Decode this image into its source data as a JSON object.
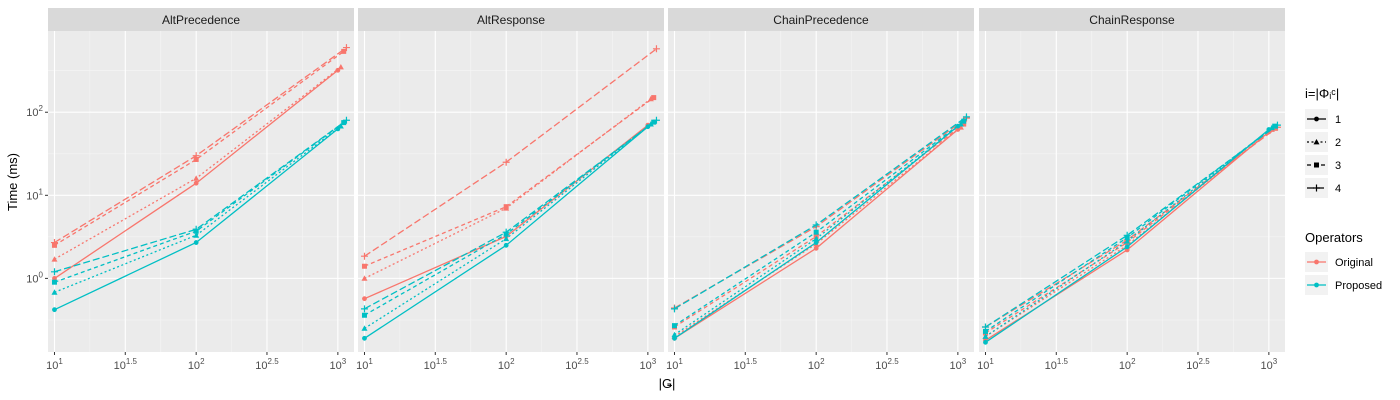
{
  "chart_data": {
    "type": "line",
    "xlabel": "|Ǥ|",
    "ylabel": "Time (ms)",
    "x_scale": "log10",
    "y_scale": "log10",
    "xlim": [
      9,
      1300
    ],
    "ylim": [
      0.13,
      950
    ],
    "x_ticks": [
      {
        "value": 10,
        "base": "10",
        "exp": "1"
      },
      {
        "value": 31.6,
        "base": "10",
        "exp": "1.5"
      },
      {
        "value": 100,
        "base": "10",
        "exp": "2"
      },
      {
        "value": 316,
        "base": "10",
        "exp": "2.5"
      },
      {
        "value": 1000,
        "base": "10",
        "exp": "3"
      }
    ],
    "y_ticks": [
      {
        "value": 1,
        "base": "10",
        "exp": "0"
      },
      {
        "value": 10,
        "base": "10",
        "exp": "1"
      },
      {
        "value": 100,
        "base": "10",
        "exp": "2"
      }
    ],
    "grid": true,
    "colors": {
      "Original": "#F8766D",
      "Proposed": "#00BFC4"
    },
    "legends": {
      "shape": {
        "title": "i=|Φᵢᶜ|",
        "items": [
          {
            "label": "1",
            "dash": "solid",
            "shape": "circle"
          },
          {
            "label": "2",
            "dash": "dashed-short",
            "shape": "triangle"
          },
          {
            "label": "3",
            "dash": "dashed",
            "shape": "square"
          },
          {
            "label": "4",
            "dash": "longdash",
            "shape": "plus"
          }
        ]
      },
      "color": {
        "title": "Operators",
        "items": [
          {
            "label": "Original",
            "color": "#F8766D"
          },
          {
            "label": "Proposed",
            "color": "#00BFC4"
          }
        ]
      }
    },
    "facets": [
      {
        "title": "AltPrecedence",
        "series": [
          {
            "operator": "Original",
            "i": "1",
            "x": [
              10,
              100,
              1000
            ],
            "y": [
              1.0,
              14,
              320
            ]
          },
          {
            "operator": "Original",
            "i": "2",
            "x": [
              10,
              100,
              1050
            ],
            "y": [
              1.7,
              16,
              350
            ]
          },
          {
            "operator": "Original",
            "i": "3",
            "x": [
              10,
              100,
              1100
            ],
            "y": [
              2.5,
              27,
              540
            ]
          },
          {
            "operator": "Original",
            "i": "4",
            "x": [
              10,
              100,
              1150
            ],
            "y": [
              2.7,
              30,
              600
            ]
          },
          {
            "operator": "Proposed",
            "i": "1",
            "x": [
              10,
              100,
              1000
            ],
            "y": [
              0.42,
              2.7,
              63
            ]
          },
          {
            "operator": "Proposed",
            "i": "2",
            "x": [
              10,
              100,
              1050
            ],
            "y": [
              0.68,
              3.3,
              68
            ]
          },
          {
            "operator": "Proposed",
            "i": "3",
            "x": [
              10,
              100,
              1100
            ],
            "y": [
              0.9,
              3.7,
              75
            ]
          },
          {
            "operator": "Proposed",
            "i": "4",
            "x": [
              10,
              100,
              1150
            ],
            "y": [
              1.2,
              3.9,
              80
            ]
          }
        ]
      },
      {
        "title": "AltResponse",
        "series": [
          {
            "operator": "Original",
            "i": "1",
            "x": [
              10,
              100,
              1000
            ],
            "y": [
              0.57,
              3.2,
              70
            ]
          },
          {
            "operator": "Original",
            "i": "2",
            "x": [
              10,
              100,
              1050
            ],
            "y": [
              1.0,
              7.0,
              145
            ]
          },
          {
            "operator": "Original",
            "i": "3",
            "x": [
              10,
              100,
              1100
            ],
            "y": [
              1.4,
              7.3,
              150
            ]
          },
          {
            "operator": "Original",
            "i": "4",
            "x": [
              10,
              100,
              1150
            ],
            "y": [
              1.85,
              25,
              580
            ]
          },
          {
            "operator": "Proposed",
            "i": "1",
            "x": [
              10,
              100,
              1000
            ],
            "y": [
              0.19,
              2.5,
              67
            ]
          },
          {
            "operator": "Proposed",
            "i": "2",
            "x": [
              10,
              100,
              1050
            ],
            "y": [
              0.25,
              3.0,
              72
            ]
          },
          {
            "operator": "Proposed",
            "i": "3",
            "x": [
              10,
              100,
              1100
            ],
            "y": [
              0.36,
              3.4,
              76
            ]
          },
          {
            "operator": "Proposed",
            "i": "4",
            "x": [
              10,
              100,
              1150
            ],
            "y": [
              0.43,
              3.6,
              80
            ]
          }
        ]
      },
      {
        "title": "ChainPrecedence",
        "series": [
          {
            "operator": "Original",
            "i": "1",
            "x": [
              10,
              100,
              1000
            ],
            "y": [
              0.19,
              2.3,
              62
            ]
          },
          {
            "operator": "Original",
            "i": "2",
            "x": [
              10,
              100,
              1050
            ],
            "y": [
              0.2,
              2.6,
              66
            ]
          },
          {
            "operator": "Original",
            "i": "3",
            "x": [
              10,
              100,
              1100
            ],
            "y": [
              0.26,
              3.2,
              72
            ]
          },
          {
            "operator": "Original",
            "i": "4",
            "x": [
              10,
              100,
              1150
            ],
            "y": [
              0.44,
              4.2,
              85
            ]
          },
          {
            "operator": "Proposed",
            "i": "1",
            "x": [
              10,
              100,
              1000
            ],
            "y": [
              0.19,
              2.7,
              68
            ]
          },
          {
            "operator": "Proposed",
            "i": "2",
            "x": [
              10,
              100,
              1050
            ],
            "y": [
              0.21,
              3.0,
              72
            ]
          },
          {
            "operator": "Proposed",
            "i": "3",
            "x": [
              10,
              100,
              1100
            ],
            "y": [
              0.27,
              3.6,
              78
            ]
          },
          {
            "operator": "Proposed",
            "i": "4",
            "x": [
              10,
              100,
              1150
            ],
            "y": [
              0.43,
              4.4,
              88
            ]
          }
        ]
      },
      {
        "title": "ChainResponse",
        "series": [
          {
            "operator": "Original",
            "i": "1",
            "x": [
              10,
              100,
              1000
            ],
            "y": [
              0.18,
              2.2,
              58
            ]
          },
          {
            "operator": "Original",
            "i": "2",
            "x": [
              10,
              100,
              1050
            ],
            "y": [
              0.2,
              2.5,
              62
            ]
          },
          {
            "operator": "Original",
            "i": "3",
            "x": [
              10,
              100,
              1100
            ],
            "y": [
              0.22,
              2.7,
              64
            ]
          },
          {
            "operator": "Original",
            "i": "4",
            "x": [
              10,
              100,
              1150
            ],
            "y": [
              0.26,
              2.9,
              66
            ]
          },
          {
            "operator": "Proposed",
            "i": "1",
            "x": [
              10,
              100,
              1000
            ],
            "y": [
              0.17,
              2.4,
              62
            ]
          },
          {
            "operator": "Proposed",
            "i": "2",
            "x": [
              10,
              100,
              1050
            ],
            "y": [
              0.2,
              2.8,
              65
            ]
          },
          {
            "operator": "Proposed",
            "i": "3",
            "x": [
              10,
              100,
              1100
            ],
            "y": [
              0.23,
              3.1,
              68
            ]
          },
          {
            "operator": "Proposed",
            "i": "4",
            "x": [
              10,
              100,
              1150
            ],
            "y": [
              0.26,
              3.3,
              70
            ]
          }
        ]
      }
    ]
  }
}
